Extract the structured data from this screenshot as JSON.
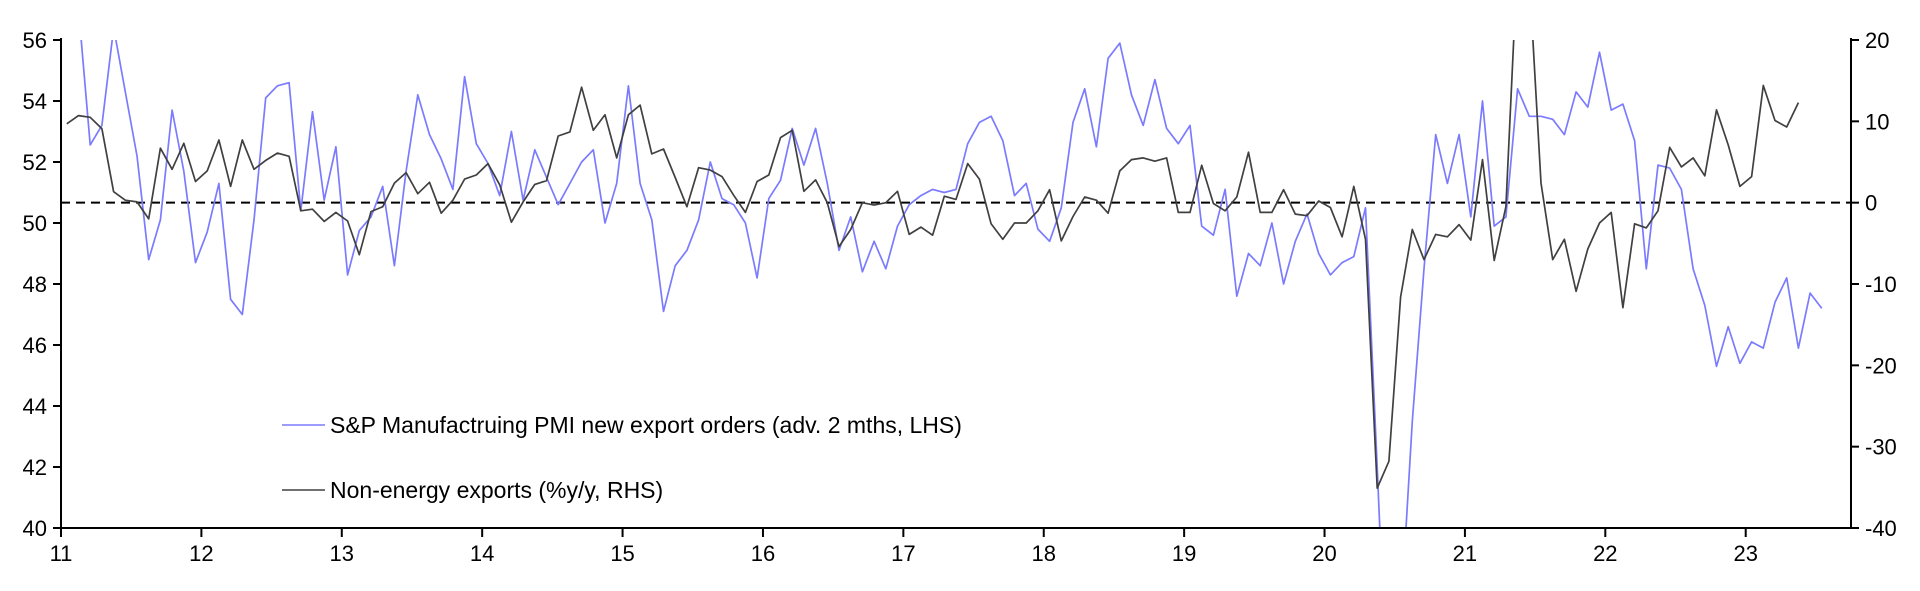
{
  "chart_data": {
    "type": "line",
    "title": "",
    "xlabel": "",
    "ylabel_left": "",
    "ylabel_right": "",
    "x_ticks": [
      "11",
      "12",
      "13",
      "14",
      "15",
      "16",
      "17",
      "18",
      "19",
      "20",
      "21",
      "22",
      "23"
    ],
    "x_range_years": [
      2011,
      2023.75
    ],
    "y_left": {
      "range": [
        40,
        56
      ],
      "ticks": [
        "40",
        "42",
        "44",
        "46",
        "48",
        "50",
        "52",
        "54",
        "56"
      ]
    },
    "y_right": {
      "range": [
        -40,
        20
      ],
      "ticks": [
        "-40",
        "-30",
        "-20",
        "-10",
        "0",
        "10",
        "20"
      ]
    },
    "reference_line": {
      "axis": "right",
      "value": 0,
      "style": "dashed"
    },
    "grid": false,
    "legend_position": "bottom-left",
    "series": [
      {
        "name": "S&P Manufactruing PMI new export orders (adv. 2 mths, LHS)",
        "axis": "left",
        "color": "#7b7bff",
        "start": "2011-02",
        "frequency": "monthly",
        "values": [
          57.0,
          52.56,
          53.2,
          56.4,
          54.3,
          52.2,
          48.8,
          50.1,
          53.7,
          51.7,
          48.7,
          49.7,
          51.3,
          47.5,
          47.0,
          50.1,
          54.1,
          54.5,
          54.6,
          50.4,
          53.65,
          50.75,
          52.5,
          48.3,
          49.75,
          50.2,
          51.2,
          48.6,
          51.7,
          54.2,
          52.9,
          52.1,
          51.1,
          54.8,
          52.6,
          51.95,
          50.9,
          53.0,
          50.75,
          52.4,
          51.5,
          50.6,
          51.3,
          52.0,
          52.4,
          50.0,
          51.3,
          54.5,
          51.3,
          50.1,
          47.1,
          48.6,
          49.1,
          50.1,
          52.0,
          50.8,
          50.6,
          50.0,
          48.2,
          50.8,
          51.4,
          53.1,
          51.9,
          53.1,
          51.3,
          49.1,
          50.2,
          48.4,
          49.4,
          48.5,
          49.9,
          50.6,
          50.9,
          51.1,
          51.0,
          51.1,
          52.6,
          53.3,
          53.5,
          52.7,
          50.9,
          51.3,
          49.8,
          49.4,
          50.5,
          53.3,
          54.4,
          52.5,
          55.4,
          55.9,
          54.2,
          53.2,
          54.7,
          53.1,
          52.6,
          53.2,
          49.9,
          49.6,
          51.1,
          47.6,
          49.0,
          48.6,
          50.0,
          48.0,
          49.4,
          50.3,
          49.0,
          48.3,
          48.7,
          48.9,
          50.5,
          42.0,
          33.0,
          37.0,
          43.5,
          48.5,
          52.9,
          51.3,
          52.9,
          50.2,
          54.0,
          49.9,
          50.2,
          54.4,
          53.5,
          53.5,
          53.4,
          52.9,
          54.3,
          53.8,
          55.6,
          53.7,
          53.9,
          52.7,
          48.5,
          51.9,
          51.8,
          51.1,
          48.5,
          47.3,
          45.3,
          46.6,
          45.4,
          46.1,
          45.9,
          47.4,
          48.2,
          45.9,
          47.7,
          47.2
        ]
      },
      {
        "name": "Non-energy exports (%y/y, RHS)",
        "axis": "right",
        "color": "#404040",
        "start": "2011-01",
        "frequency": "monthly",
        "values": [
          9.7,
          10.7,
          10.5,
          9.1,
          1.35,
          0.3,
          0.1,
          -2.0,
          6.7,
          4.1,
          7.3,
          2.6,
          3.9,
          7.7,
          2.0,
          7.7,
          4.1,
          5.2,
          6.1,
          5.7,
          -1.0,
          -0.8,
          -2.3,
          -1.2,
          -2.25,
          -6.4,
          -1.1,
          -0.5,
          2.4,
          3.7,
          1.1,
          2.5,
          -1.3,
          0.3,
          2.9,
          3.4,
          4.8,
          2.2,
          -2.4,
          0.1,
          2.25,
          2.7,
          8.2,
          8.7,
          14.2,
          8.9,
          10.8,
          5.5,
          10.8,
          12.0,
          6.0,
          6.6,
          3.1,
          -0.5,
          4.3,
          4.0,
          3.2,
          0.9,
          -1.2,
          2.6,
          3.4,
          8.0,
          8.9,
          1.4,
          2.8,
          0.0,
          -5.4,
          -3.3,
          0.0,
          -0.3,
          0.0,
          1.4,
          -3.9,
          -3.0,
          -4.0,
          0.8,
          0.4,
          4.8,
          2.9,
          -2.6,
          -4.5,
          -2.5,
          -2.5,
          -1.0,
          1.6,
          -4.7,
          -1.7,
          0.7,
          0.3,
          -1.3,
          3.9,
          5.3,
          5.5,
          5.1,
          5.5,
          -1.2,
          -1.2,
          4.6,
          -0.1,
          -1.0,
          0.7,
          6.2,
          -1.2,
          -1.2,
          1.6,
          -1.4,
          -1.6,
          0.2,
          -0.6,
          -4.2,
          2.0,
          -4.5,
          -35.1,
          -31.8,
          -11.6,
          -3.3,
          -7.0,
          -3.9,
          -4.2,
          -2.7,
          -4.6,
          5.3,
          -7.1,
          -0.5,
          30.0,
          28.0,
          2.4,
          -7.0,
          -4.5,
          -10.9,
          -5.7,
          -2.5,
          -1.2,
          -12.9,
          -2.6,
          -3.1,
          -1.0,
          6.8,
          4.4,
          5.5,
          3.3,
          11.4,
          7.1,
          2.0,
          3.2,
          14.4,
          10.1,
          9.3,
          12.3
        ]
      }
    ]
  }
}
